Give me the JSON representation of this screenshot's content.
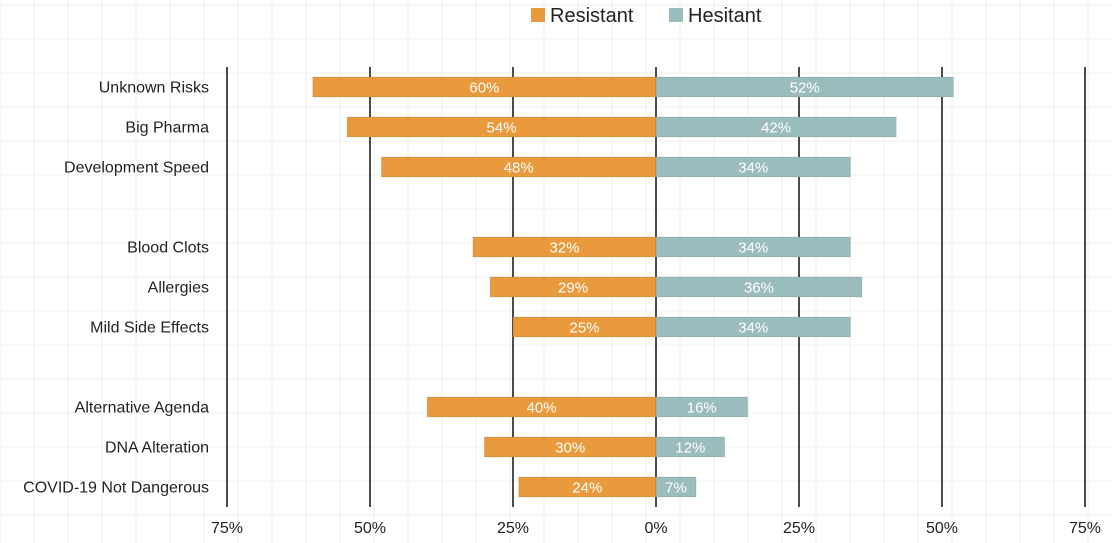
{
  "chart_data": {
    "type": "bar",
    "orientation": "horizontal-diverging",
    "categories": [
      "Unknown Risks",
      "Big Pharma",
      "Development Speed",
      "",
      "Blood Clots",
      "Allergies",
      "Mild Side Effects",
      "",
      "Alternative Agenda",
      "DNA Alteration",
      "COVID-19 Not Dangerous"
    ],
    "series": [
      {
        "name": "Resistant",
        "color": "#e89a3c",
        "direction": "left",
        "values": [
          60,
          54,
          48,
          null,
          32,
          29,
          25,
          null,
          40,
          30,
          24
        ],
        "labels": [
          "60%",
          "54%",
          "48%",
          "",
          "32%",
          "29%",
          "25%",
          "",
          "40%",
          "30%",
          "24%"
        ]
      },
      {
        "name": "Hesitant",
        "color": "#9bbcbd",
        "direction": "right",
        "values": [
          52,
          42,
          34,
          null,
          34,
          36,
          34,
          null,
          16,
          12,
          7
        ],
        "labels": [
          "52%",
          "42%",
          "34%",
          "",
          "34%",
          "36%",
          "34%",
          "",
          "16%",
          "12%",
          "7%"
        ]
      }
    ],
    "xlim": [
      -75,
      75
    ],
    "ticks": [
      -75,
      -50,
      -25,
      0,
      25,
      50,
      75
    ],
    "tick_labels": [
      "75%",
      "50%",
      "25%",
      "0%",
      "25%",
      "50%",
      "75%"
    ],
    "grid": true,
    "legend": "top-center",
    "title": "",
    "xlabel": "",
    "ylabel": ""
  }
}
